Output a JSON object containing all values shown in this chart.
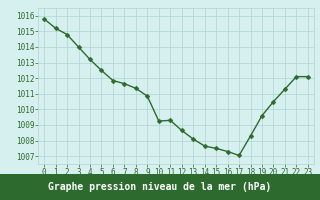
{
  "x": [
    0,
    1,
    2,
    3,
    4,
    5,
    6,
    7,
    8,
    9,
    10,
    11,
    12,
    13,
    14,
    15,
    16,
    17,
    18,
    19,
    20,
    21,
    22,
    23
  ],
  "y": [
    1015.8,
    1015.2,
    1014.8,
    1014.0,
    1013.2,
    1012.5,
    1011.85,
    1011.65,
    1011.35,
    1010.85,
    1009.25,
    1009.3,
    1008.65,
    1008.1,
    1007.65,
    1007.5,
    1007.3,
    1007.05,
    1008.3,
    1009.6,
    1010.5,
    1011.3,
    1012.1,
    1012.1
  ],
  "line_color": "#2d6a2d",
  "marker": "D",
  "marker_size": 2.5,
  "linewidth": 1.0,
  "bg_color": "#d6f0ef",
  "grid_color": "#b0d4d0",
  "label_color": "#2d6a2d",
  "xlabel": "Graphe pression niveau de la mer (hPa)",
  "xlabel_bg": "#2d6a2d",
  "xlabel_text_color": "#ffffff",
  "ylabel_ticks": [
    1007,
    1008,
    1009,
    1010,
    1011,
    1012,
    1013,
    1014,
    1015,
    1016
  ],
  "xticks": [
    0,
    1,
    2,
    3,
    4,
    5,
    6,
    7,
    8,
    9,
    10,
    11,
    12,
    13,
    14,
    15,
    16,
    17,
    18,
    19,
    20,
    21,
    22,
    23
  ],
  "ylim": [
    1006.5,
    1016.5
  ],
  "xlim": [
    -0.5,
    23.5
  ],
  "tick_fontsize": 5.5,
  "xlabel_fontsize": 7.0
}
